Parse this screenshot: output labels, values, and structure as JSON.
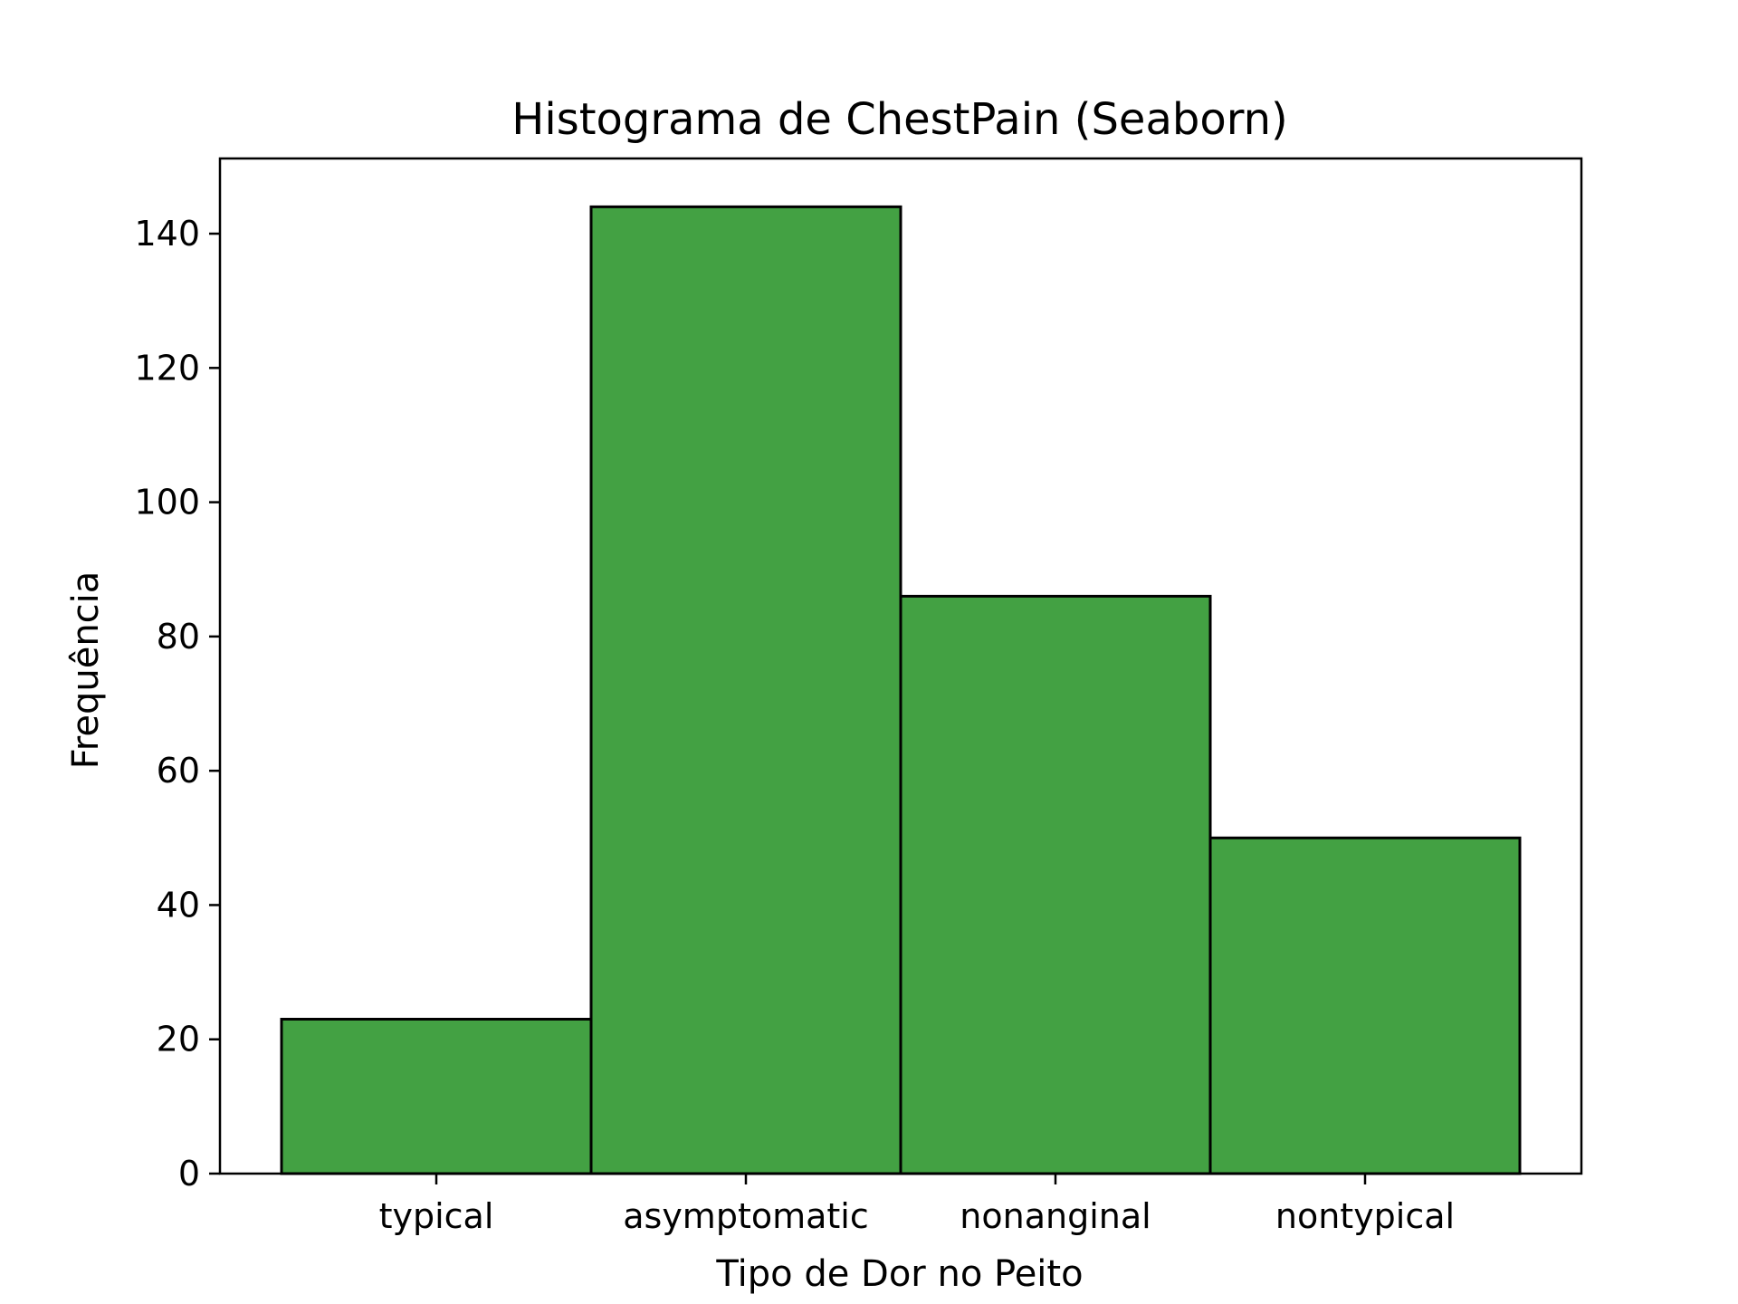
{
  "chart_data": {
    "type": "bar",
    "title": "Histograma de ChestPain (Seaborn)",
    "xlabel": "Tipo de Dor no Peito",
    "ylabel": "Frequência",
    "categories": [
      "typical",
      "asymptomatic",
      "nonanginal",
      "nontypical"
    ],
    "values": [
      23,
      144,
      86,
      50
    ],
    "ylim": [
      0,
      151.2
    ],
    "yticks": [
      0,
      20,
      40,
      60,
      80,
      100,
      120,
      140
    ],
    "bar_color": "#43a143",
    "edge_color": "#000000",
    "grid": false,
    "legend": "none"
  }
}
